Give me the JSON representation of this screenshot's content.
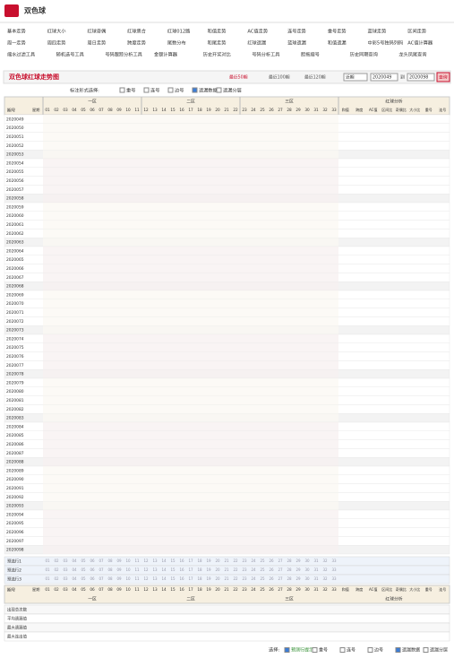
{
  "header": {
    "title": "双色球"
  },
  "nav": [
    [
      "基本走势",
      "红球大小",
      "红球奇偶",
      "红球质合",
      "红球012路",
      "和值走势",
      "AC值走势",
      "连号走势",
      "重号走势",
      "蓝球走势",
      "区间走势"
    ],
    [
      "周一走势",
      "周四走势",
      "周日走势",
      "跨度走势",
      "尾数分布",
      "和尾走势",
      "红球遗漏",
      "蓝球遗漏",
      "和值遗漏",
      "中彩5号独码列码",
      "AC值计算器"
    ],
    [
      "缩水过滤工具",
      "随机选号工具",
      "号码跟踪分析工具",
      "金额计算器",
      "历史开奖对比",
      "号码分析工具",
      "胆拖缩号",
      "历史同期查询",
      "龙头凤尾查询"
    ]
  ],
  "chart_title": "双色球红球走势图",
  "range_links": [
    "最近50期",
    "最近100期",
    "最近120期"
  ],
  "select": "近期",
  "from": "2020049",
  "to_label": "到",
  "to": "2020098",
  "query": "查询",
  "mark_label": "标注形式选择:",
  "mark_options": [
    "重号",
    "连号",
    "边号",
    "遗漏数据",
    "遗漏分层"
  ],
  "table": {
    "period_label": "期号",
    "week_label": "星期",
    "zones": [
      "一区",
      "二区",
      "三区"
    ],
    "balls": [
      "01",
      "02",
      "03",
      "04",
      "05",
      "06",
      "07",
      "08",
      "09",
      "10",
      "11",
      "12",
      "13",
      "14",
      "15",
      "16",
      "17",
      "18",
      "19",
      "20",
      "21",
      "22",
      "23",
      "24",
      "25",
      "26",
      "27",
      "28",
      "29",
      "30",
      "31",
      "32",
      "33"
    ],
    "analysis_label": "红球分析",
    "analysis_cols": [
      "和值",
      "跨度",
      "AC值",
      "区间比",
      "奇偶比",
      "大小比",
      "重号",
      "连号"
    ],
    "rows": [
      "2020049",
      "2020050",
      "2020051",
      "2020052",
      "2020053",
      "2020054",
      "2020055",
      "2020056",
      "2020057",
      "2020058",
      "2020059",
      "2020060",
      "2020061",
      "2020062",
      "2020063",
      "2020064",
      "2020065",
      "2020066",
      "2020067",
      "2020068",
      "2020069",
      "2020070",
      "2020071",
      "2020072",
      "2020073",
      "2020074",
      "2020075",
      "2020076",
      "2020077",
      "2020078",
      "2020079",
      "2020080",
      "2020081",
      "2020082",
      "2020083",
      "2020084",
      "2020085",
      "2020086",
      "2020087",
      "2020088",
      "2020089",
      "2020090",
      "2020091",
      "2020092",
      "2020093",
      "2020094",
      "2020095",
      "2020096",
      "2020097",
      "2020098"
    ],
    "preselect": [
      "预选行1",
      "预选行2",
      "预选行3"
    ],
    "stats": [
      "出现总次数",
      "平均遗漏值",
      "最大遗漏值",
      "最大连出值"
    ]
  },
  "footer": {
    "label": "选择:",
    "options": [
      "预测行提示",
      "重号",
      "连号",
      "边号",
      "遗漏数据",
      "遗漏分层"
    ]
  }
}
